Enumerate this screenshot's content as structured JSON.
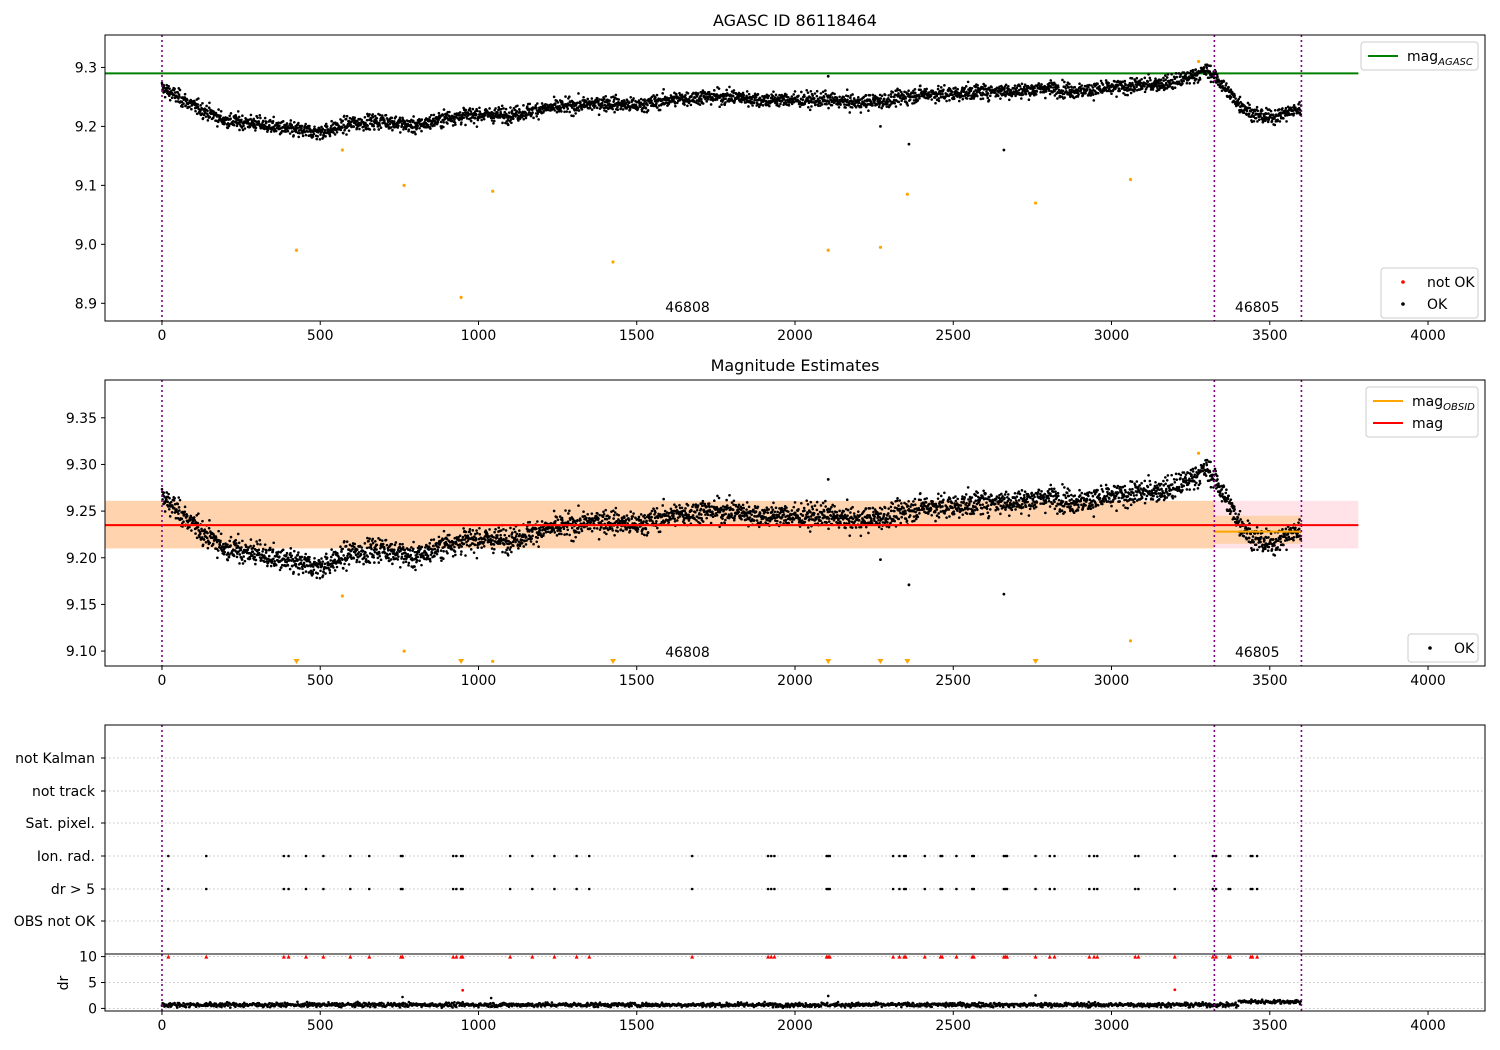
{
  "figure": {
    "obsid_boundaries": [
      0,
      3325,
      3600
    ],
    "obsid_labels": [
      {
        "text": "46808",
        "x": 1590
      },
      {
        "text": "46805",
        "x": 3390
      }
    ]
  },
  "colors": {
    "ok": "#000000",
    "not_ok": "#ff0000",
    "outlier": "#ffa500",
    "agasc": "#008000",
    "mag": "#ff0000",
    "mag_obsid": "#ffa500",
    "boundary": "#800080"
  },
  "chart_data": [
    {
      "type": "scatter",
      "title": "AGASC ID 86118464",
      "xlabel": "",
      "ylabel": "",
      "xlim": [
        -180,
        4180
      ],
      "ylim": [
        8.87,
        9.355
      ],
      "xticks": [
        0,
        500,
        1000,
        1500,
        2000,
        2500,
        3000,
        3500,
        4000
      ],
      "yticks": [
        8.9,
        9.0,
        9.1,
        9.2,
        9.3
      ],
      "ytick_labels": [
        "8.9",
        "9.0",
        "9.1",
        "9.2",
        "9.3"
      ],
      "reference_lines": [
        {
          "name": "mag_AGASC",
          "y": 9.29,
          "x_range": [
            -180,
            3780
          ]
        }
      ],
      "ok_trend": {
        "x": [
          0,
          100,
          200,
          300,
          400,
          500,
          600,
          700,
          800,
          900,
          1000,
          1100,
          1200,
          1300,
          1400,
          1500,
          1600,
          1700,
          1800,
          1900,
          2000,
          2100,
          2200,
          2300,
          2400,
          2500,
          2600,
          2700,
          2800,
          2900,
          3000,
          3100,
          3200,
          3300,
          3325,
          3400,
          3450,
          3500,
          3600
        ],
        "y": [
          9.265,
          9.235,
          9.21,
          9.205,
          9.195,
          9.19,
          9.205,
          9.21,
          9.2,
          9.215,
          9.22,
          9.22,
          9.23,
          9.235,
          9.24,
          9.235,
          9.245,
          9.25,
          9.25,
          9.245,
          9.245,
          9.245,
          9.24,
          9.245,
          9.255,
          9.255,
          9.26,
          9.26,
          9.265,
          9.26,
          9.265,
          9.27,
          9.275,
          9.295,
          9.285,
          9.24,
          9.22,
          9.215,
          9.23
        ]
      },
      "ok_outliers": [
        [
          2360,
          9.17
        ],
        [
          2660,
          9.16
        ],
        [
          2270,
          9.2
        ],
        [
          2105,
          9.285
        ]
      ],
      "orange_points": [
        [
          425,
          8.99
        ],
        [
          570,
          9.16
        ],
        [
          765,
          9.1
        ],
        [
          945,
          8.91
        ],
        [
          1045,
          9.09
        ],
        [
          1425,
          8.97
        ],
        [
          2105,
          8.99
        ],
        [
          2270,
          8.995
        ],
        [
          2355,
          9.085
        ],
        [
          2760,
          9.07
        ],
        [
          3060,
          9.11
        ],
        [
          3275,
          9.31
        ]
      ],
      "legends": [
        {
          "position": "upper-right",
          "entries": [
            {
              "label_main": "mag",
              "label_sub": "AGASC",
              "marker": "line",
              "color": "#008000"
            }
          ]
        },
        {
          "position": "lower-right",
          "entries": [
            {
              "label_main": "not OK",
              "label_sub": "",
              "marker": "dot",
              "color": "#ff0000"
            },
            {
              "label_main": "OK",
              "label_sub": "",
              "marker": "dot",
              "color": "#000000"
            }
          ]
        }
      ]
    },
    {
      "type": "scatter",
      "title": "Magnitude Estimates",
      "xlabel": "",
      "ylabel": "",
      "xlim": [
        -180,
        4180
      ],
      "ylim": [
        9.084,
        9.3905
      ],
      "xticks": [
        0,
        500,
        1000,
        1500,
        2000,
        2500,
        3000,
        3500,
        4000
      ],
      "yticks": [
        9.1,
        9.15,
        9.2,
        9.25,
        9.3,
        9.35
      ],
      "ytick_labels": [
        "9.10",
        "9.15",
        "9.20",
        "9.25",
        "9.30",
        "9.35"
      ],
      "mag_line": {
        "y": 9.235,
        "x_range": [
          -180,
          3780
        ],
        "band": [
          9.21,
          9.261
        ]
      },
      "obsid_segments": [
        {
          "x_range": [
            -180,
            3325
          ],
          "y": 9.235,
          "band": [
            9.21,
            9.261
          ]
        },
        {
          "x_range": [
            3325,
            3600
          ],
          "y": 9.228,
          "band": [
            9.215,
            9.245
          ]
        }
      ],
      "ok_outliers": [
        [
          2360,
          9.171
        ],
        [
          2660,
          9.161
        ],
        [
          2270,
          9.198
        ],
        [
          2105,
          9.284
        ]
      ],
      "orange_points": [
        [
          570,
          9.159
        ],
        [
          765,
          9.1
        ],
        [
          1045,
          9.089
        ],
        [
          3060,
          9.111
        ],
        [
          3275,
          9.312
        ]
      ],
      "orange_limit_markers_x": [
        425,
        945,
        1425,
        2105,
        2270,
        2355,
        2760
      ],
      "legends": [
        {
          "position": "upper-right",
          "entries": [
            {
              "label_main": "mag",
              "label_sub": "OBSID",
              "marker": "line",
              "color": "#ffa500"
            },
            {
              "label_main": "mag",
              "label_sub": "",
              "marker": "line",
              "color": "#ff0000"
            }
          ]
        },
        {
          "position": "lower-right",
          "entries": [
            {
              "label_main": "OK",
              "label_sub": "",
              "marker": "dot",
              "color": "#000000"
            }
          ]
        }
      ]
    },
    {
      "type": "scatter",
      "title": "",
      "xlabel": "",
      "ylabel": "",
      "xlim": [
        -180,
        4180
      ],
      "flag_rows": [
        "not Kalman",
        "not track",
        "Sat. pixel.",
        "Ion. rad.",
        "dr > 5",
        "OBS not OK"
      ],
      "flag_x": [
        20,
        140,
        385,
        400,
        455,
        510,
        595,
        655,
        755,
        760,
        920,
        930,
        945,
        950,
        1100,
        1170,
        1240,
        1310,
        1350,
        1675,
        1915,
        1925,
        1935,
        2100,
        2105,
        2110,
        2310,
        2330,
        2345,
        2350,
        2410,
        2460,
        2465,
        2510,
        2560,
        2565,
        2660,
        2665,
        2670,
        2760,
        2805,
        2820,
        2930,
        2945,
        2955,
        3075,
        3085,
        3200,
        3320,
        3330,
        3370,
        3375,
        3440,
        3445,
        3460
      ],
      "flag_markers": {
        "Ion. rad.": "black",
        "dr > 5": "black"
      }
    },
    {
      "type": "scatter",
      "title": "",
      "xlabel": "",
      "ylabel": "dr",
      "xlim": [
        -180,
        4180
      ],
      "ylim": [
        -0.5,
        10.5
      ],
      "yticks": [
        0,
        5,
        10
      ],
      "ytick_labels": [
        "0",
        "5",
        "10"
      ],
      "dr_baseline": 0.7,
      "dr_outliers_red": [
        [
          950,
          3.5
        ],
        [
          3200,
          3.6
        ]
      ],
      "dr_outliers_black": [
        [
          2760,
          2.5
        ],
        [
          2105,
          2.4
        ],
        [
          760,
          2.2
        ],
        [
          1040,
          2.0
        ]
      ],
      "dr_capped_red_x": [
        20,
        140,
        385,
        400,
        455,
        510,
        595,
        655,
        755,
        760,
        920,
        930,
        945,
        950,
        1100,
        1170,
        1240,
        1310,
        1350,
        1675,
        1915,
        1925,
        1935,
        2100,
        2105,
        2110,
        2310,
        2330,
        2345,
        2350,
        2410,
        2460,
        2465,
        2510,
        2560,
        2565,
        2660,
        2665,
        2670,
        2760,
        2805,
        2820,
        2930,
        2945,
        2955,
        3075,
        3085,
        3200,
        3320,
        3330,
        3370,
        3375,
        3440,
        3445,
        3460
      ]
    }
  ]
}
